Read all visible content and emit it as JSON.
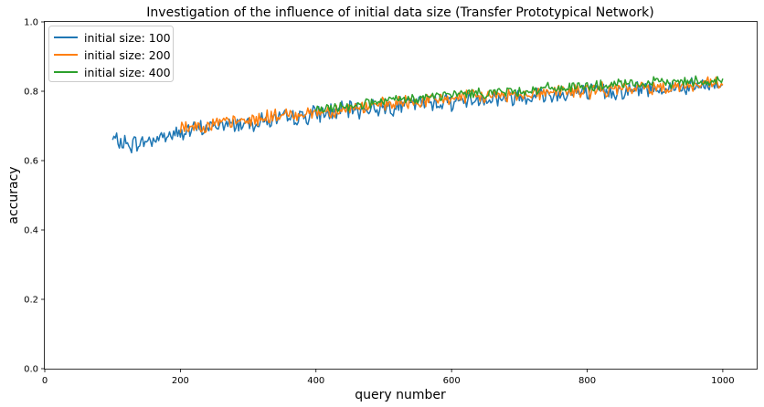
{
  "chart_data": {
    "type": "line",
    "title": "Investigation of the influence of initial data size (Transfer Prototypical Network)",
    "xlabel": "query number",
    "ylabel": "accuracy",
    "xlim": [
      0,
      1050
    ],
    "ylim": [
      0.0,
      1.0
    ],
    "xticks": [
      0,
      200,
      400,
      600,
      800,
      1000
    ],
    "yticks": [
      0.0,
      0.2,
      0.4,
      0.6,
      0.8,
      1.0
    ],
    "grid": false,
    "legend_position": "top-left",
    "series": [
      {
        "name": "initial size: 100",
        "color": "#1f77b4",
        "x": [
          100,
          125,
          150,
          175,
          200,
          225,
          250,
          275,
          300,
          325,
          350,
          375,
          400,
          425,
          450,
          475,
          500,
          525,
          550,
          575,
          600,
          625,
          650,
          675,
          700,
          725,
          750,
          775,
          800,
          825,
          850,
          875,
          900,
          925,
          950,
          975,
          1000
        ],
        "y": [
          0.66,
          0.645,
          0.655,
          0.67,
          0.68,
          0.69,
          0.7,
          0.705,
          0.71,
          0.715,
          0.72,
          0.725,
          0.735,
          0.74,
          0.745,
          0.75,
          0.755,
          0.76,
          0.765,
          0.77,
          0.77,
          0.775,
          0.78,
          0.78,
          0.785,
          0.79,
          0.79,
          0.795,
          0.795,
          0.8,
          0.8,
          0.805,
          0.81,
          0.81,
          0.81,
          0.815,
          0.82
        ]
      },
      {
        "name": "initial size: 200",
        "color": "#ff7f0e",
        "x": [
          200,
          225,
          250,
          275,
          300,
          325,
          350,
          375,
          400,
          425,
          450,
          475,
          500,
          525,
          550,
          575,
          600,
          625,
          650,
          675,
          700,
          725,
          750,
          775,
          800,
          825,
          850,
          875,
          900,
          925,
          950,
          975,
          1000
        ],
        "y": [
          0.695,
          0.7,
          0.705,
          0.71,
          0.715,
          0.725,
          0.73,
          0.735,
          0.74,
          0.745,
          0.75,
          0.755,
          0.76,
          0.765,
          0.77,
          0.775,
          0.78,
          0.785,
          0.785,
          0.79,
          0.79,
          0.795,
          0.8,
          0.8,
          0.8,
          0.805,
          0.805,
          0.81,
          0.81,
          0.815,
          0.815,
          0.82,
          0.82
        ]
      },
      {
        "name": "initial size: 400",
        "color": "#2ca02c",
        "x": [
          400,
          425,
          450,
          475,
          500,
          525,
          550,
          575,
          600,
          625,
          650,
          675,
          700,
          725,
          750,
          775,
          800,
          825,
          850,
          875,
          900,
          925,
          950,
          975,
          1000
        ],
        "y": [
          0.745,
          0.75,
          0.76,
          0.765,
          0.77,
          0.775,
          0.78,
          0.785,
          0.79,
          0.795,
          0.795,
          0.8,
          0.8,
          0.805,
          0.81,
          0.81,
          0.815,
          0.815,
          0.82,
          0.82,
          0.825,
          0.825,
          0.83,
          0.83,
          0.83
        ]
      }
    ]
  }
}
